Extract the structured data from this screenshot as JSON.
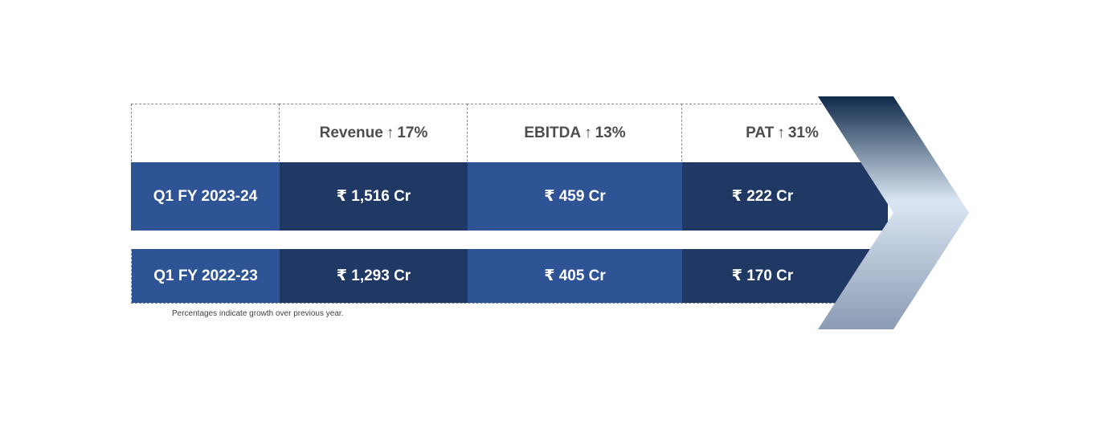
{
  "header": {
    "revenue": {
      "label": "Revenue",
      "arrow": "↑",
      "growth": "17%"
    },
    "ebitda": {
      "label": "EBITDA",
      "arrow": "↑",
      "growth": "13%"
    },
    "pat": {
      "label": "PAT",
      "arrow": "↑",
      "growth": "31%"
    }
  },
  "rows": [
    {
      "period": "Q1 FY 2023-24",
      "revenue": "₹ 1,516 Cr",
      "ebitda": "₹ 459 Cr",
      "pat": "₹ 222 Cr"
    },
    {
      "period": "Q1 FY 2022-23",
      "revenue": "₹ 1,293 Cr",
      "ebitda": "₹ 405 Cr",
      "pat": "₹ 170 Cr"
    }
  ],
  "footnote": "Percentages indicate growth over previous year.",
  "colors": {
    "label_blue": "#2f5496",
    "dark_navy": "#203864",
    "chevron_top": "#0e2a4a",
    "chevron_mid": "#dbe6f3",
    "chevron_bottom": "#8a9bb4"
  }
}
